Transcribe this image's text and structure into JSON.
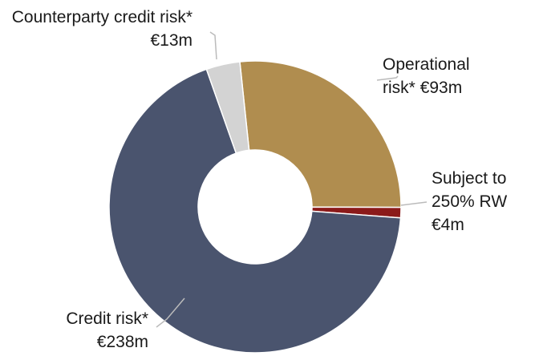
{
  "chart_data": {
    "type": "donut",
    "categories": [
      "Operational risk*",
      "Subject to 250% RW",
      "Credit risk*",
      "Counterparty credit risk*"
    ],
    "values": [
      93,
      4,
      238,
      13
    ],
    "value_labels": [
      "€93m",
      "€4m",
      "€238m",
      "€13m"
    ],
    "colors": [
      "#b08d4f",
      "#8b1a1a",
      "#4a546e",
      "#d3d3d3"
    ]
  }
}
